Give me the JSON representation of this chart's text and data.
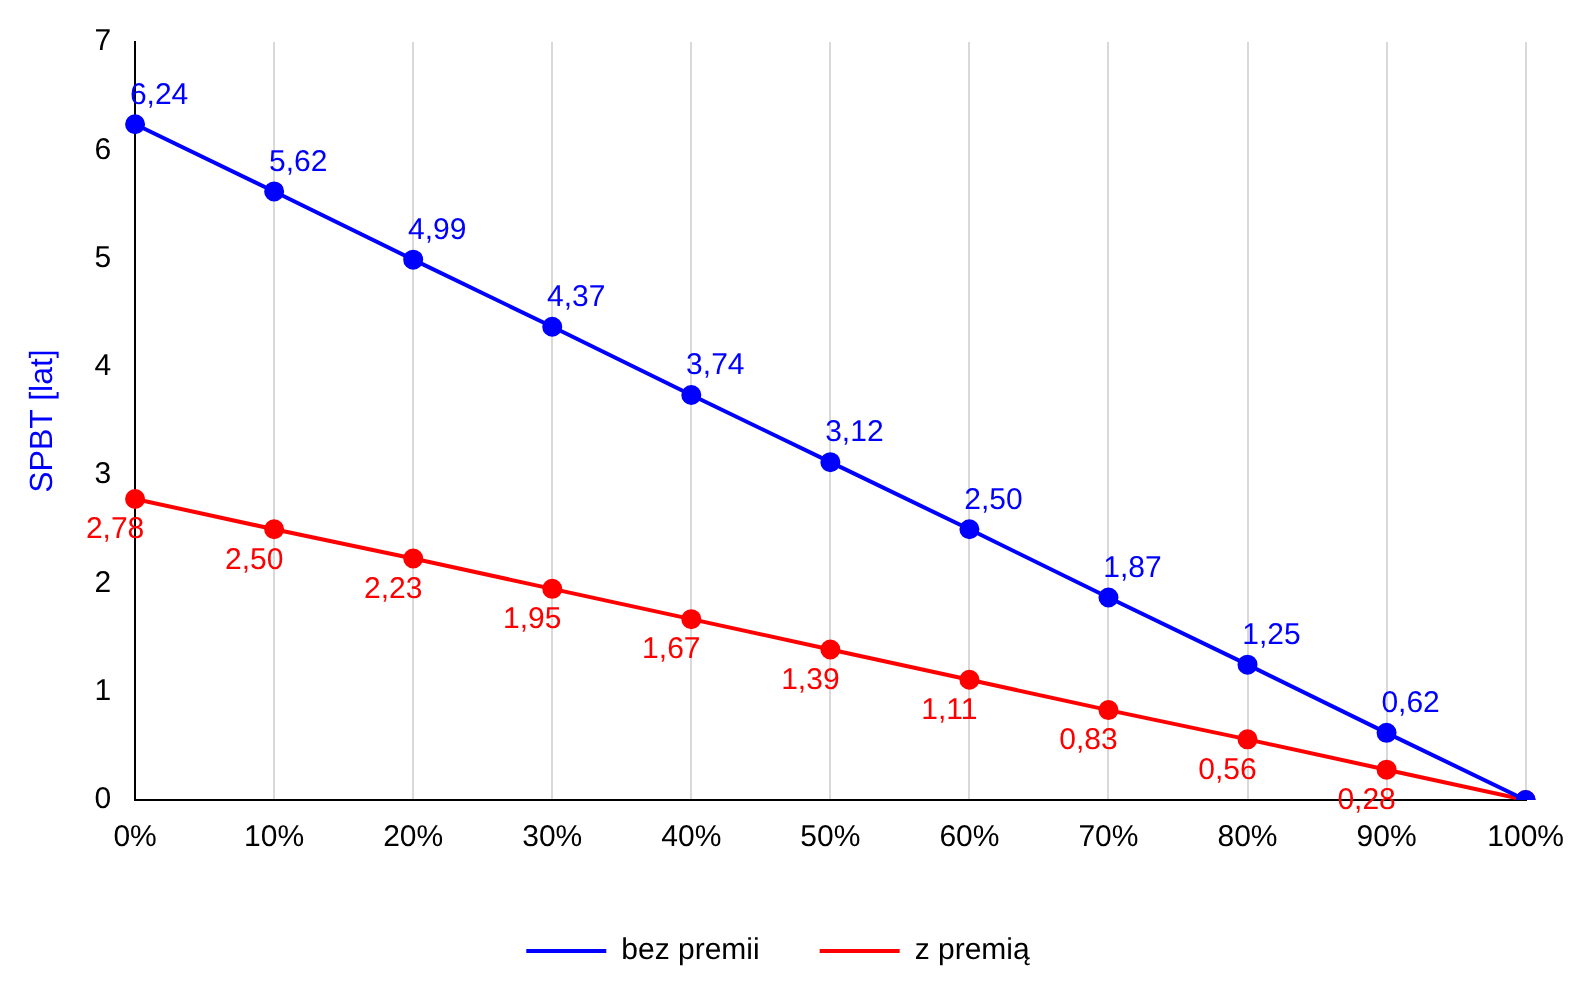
{
  "chart_data": {
    "type": "line",
    "ylabel": "SPBT [lat]",
    "categories": [
      "0%",
      "10%",
      "20%",
      "30%",
      "40%",
      "50%",
      "60%",
      "70%",
      "80%",
      "90%",
      "100%"
    ],
    "series": [
      {
        "name": "bez premii",
        "color": "#0000ff",
        "values": [
          6.24,
          5.62,
          4.99,
          4.37,
          3.74,
          3.12,
          2.5,
          1.87,
          1.25,
          0.62,
          0
        ],
        "value_labels": [
          "6,24",
          "5,62",
          "4,99",
          "4,37",
          "3,74",
          "3,12",
          "2,50",
          "1,87",
          "1,25",
          "0,62",
          null
        ]
      },
      {
        "name": "z premią",
        "color": "#ff0000",
        "values": [
          2.78,
          2.5,
          2.23,
          1.95,
          1.67,
          1.39,
          1.11,
          0.83,
          0.56,
          0.28,
          0
        ],
        "value_labels": [
          "2,78",
          "2,50",
          "2,23",
          "1,95",
          "1,67",
          "1,39",
          "1,11",
          "0,83",
          "0,56",
          "0,28",
          null
        ]
      }
    ],
    "ylim": [
      0,
      7
    ],
    "yticks": [
      0,
      1,
      2,
      3,
      4,
      5,
      6,
      7
    ],
    "grid": "x",
    "legend": "bottom",
    "marker": "circle",
    "line_style": "solid"
  }
}
